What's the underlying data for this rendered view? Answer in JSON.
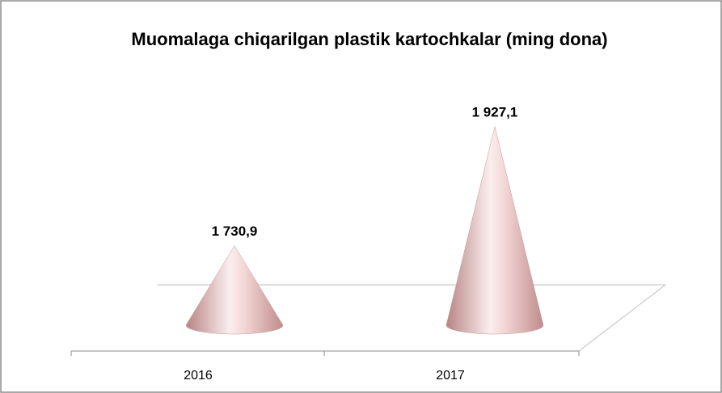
{
  "chart_data": {
    "type": "cone",
    "title": "Muomalaga chiqarilgan plastik kartochkalar (ming dona)",
    "categories": [
      "2016",
      "2017"
    ],
    "values": [
      1730.9,
      1927.1
    ],
    "value_labels": [
      "1 730,9",
      "1 927,1"
    ],
    "color": "#e8b8b8",
    "ylim": [
      1600,
      2000
    ]
  }
}
